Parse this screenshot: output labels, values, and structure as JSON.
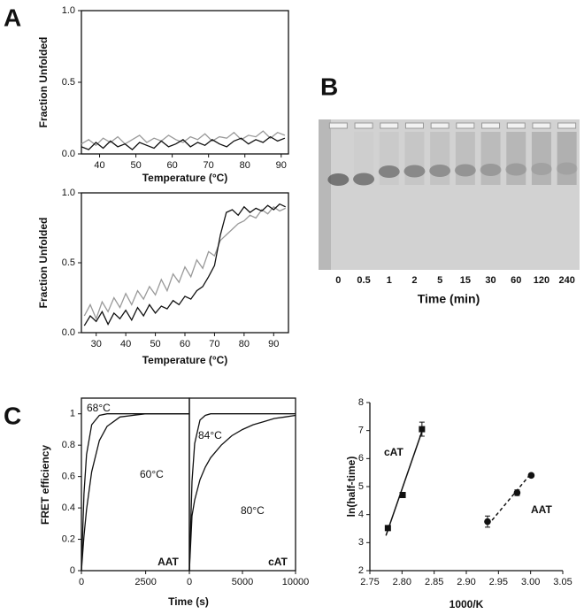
{
  "panels": [
    "A",
    "B",
    "C"
  ],
  "chart_data": [
    {
      "type": "line",
      "ylabel": "Fraction Unfolded",
      "xlabel": "Temperature (°C)",
      "box": true,
      "x": [
        35,
        37,
        39,
        41,
        43,
        45,
        47,
        49,
        51,
        53,
        55,
        57,
        59,
        61,
        63,
        65,
        67,
        69,
        71,
        73,
        75,
        77,
        79,
        81,
        83,
        85,
        87,
        89,
        91
      ],
      "series": [
        {
          "color": "#999999",
          "values": [
            0.07,
            0.1,
            0.06,
            0.11,
            0.08,
            0.12,
            0.07,
            0.1,
            0.13,
            0.08,
            0.11,
            0.09,
            0.13,
            0.1,
            0.08,
            0.12,
            0.1,
            0.14,
            0.09,
            0.12,
            0.11,
            0.15,
            0.1,
            0.13,
            0.12,
            0.16,
            0.11,
            0.15,
            0.13
          ]
        },
        {
          "color": "#111111",
          "values": [
            0.05,
            0.03,
            0.08,
            0.04,
            0.09,
            0.05,
            0.07,
            0.03,
            0.08,
            0.06,
            0.04,
            0.09,
            0.05,
            0.07,
            0.1,
            0.05,
            0.08,
            0.06,
            0.1,
            0.07,
            0.05,
            0.09,
            0.11,
            0.07,
            0.1,
            0.08,
            0.12,
            0.09,
            0.11
          ]
        }
      ],
      "xlim": [
        35,
        92
      ],
      "ylim": [
        0,
        1
      ],
      "xticks": [
        40,
        50,
        60,
        70,
        80,
        90
      ],
      "yticks": [
        {
          "value": 0,
          "label": "0.0"
        },
        {
          "value": 0.5,
          "label": "0.5"
        },
        {
          "value": 1,
          "label": "1.0"
        }
      ]
    },
    {
      "type": "line",
      "ylabel": "Fraction Unfolded",
      "xlabel": "Temperature (°C)",
      "box": true,
      "x": [
        26,
        28,
        30,
        32,
        34,
        36,
        38,
        40,
        42,
        44,
        46,
        48,
        50,
        52,
        54,
        56,
        58,
        60,
        62,
        64,
        66,
        68,
        70,
        72,
        74,
        76,
        78,
        80,
        82,
        84,
        86,
        88,
        90,
        92,
        94
      ],
      "series": [
        {
          "color": "#999999",
          "values": [
            0.12,
            0.2,
            0.1,
            0.22,
            0.15,
            0.25,
            0.18,
            0.28,
            0.2,
            0.3,
            0.24,
            0.33,
            0.27,
            0.38,
            0.3,
            0.42,
            0.36,
            0.47,
            0.4,
            0.52,
            0.46,
            0.58,
            0.55,
            0.66,
            0.7,
            0.74,
            0.78,
            0.8,
            0.84,
            0.82,
            0.88,
            0.85,
            0.9,
            0.87,
            0.89
          ]
        },
        {
          "color": "#111111",
          "values": [
            0.05,
            0.12,
            0.08,
            0.15,
            0.06,
            0.14,
            0.1,
            0.16,
            0.09,
            0.18,
            0.12,
            0.2,
            0.14,
            0.19,
            0.17,
            0.23,
            0.2,
            0.26,
            0.24,
            0.3,
            0.33,
            0.4,
            0.48,
            0.7,
            0.86,
            0.88,
            0.84,
            0.9,
            0.86,
            0.89,
            0.87,
            0.91,
            0.88,
            0.92,
            0.9
          ]
        }
      ],
      "xlim": [
        25,
        95
      ],
      "ylim": [
        0,
        1
      ],
      "xticks": [
        30,
        40,
        50,
        60,
        70,
        80,
        90
      ],
      "yticks": [
        {
          "value": 0,
          "label": "0.0"
        },
        {
          "value": 0.5,
          "label": "0.5"
        },
        {
          "value": 1,
          "label": "1.0"
        }
      ]
    },
    {
      "type": "gel",
      "categories": [
        "0",
        "0.5",
        "1",
        "2",
        "5",
        "15",
        "30",
        "60",
        "120",
        "240"
      ],
      "xlabel": "Time (min)"
    },
    {
      "type": "line",
      "ylabel": "FRET efficiency",
      "xlabel": "Time (s)",
      "label": "AAT",
      "box": true,
      "x": [
        0,
        100,
        200,
        400,
        700,
        1000,
        1500,
        2000,
        2500,
        3000,
        3500,
        4000,
        4200
      ],
      "series": [
        {
          "name": "68°C",
          "color": "#111111",
          "values": [
            0,
            0.49,
            0.74,
            0.93,
            0.99,
            1,
            1,
            1,
            1,
            1,
            1,
            1,
            1
          ]
        },
        {
          "name": "60°C",
          "color": "#111111",
          "values": [
            0,
            0.22,
            0.39,
            0.63,
            0.83,
            0.92,
            0.98,
            0.99,
            1,
            1,
            1,
            1,
            1
          ]
        }
      ],
      "xlim": [
        0,
        4200
      ],
      "ylim": [
        0,
        1.1
      ],
      "xticks": [
        0,
        2500
      ],
      "yticks": [
        0,
        0.2,
        0.4,
        0.6,
        0.8,
        1
      ]
    },
    {
      "type": "line",
      "label": "cAT",
      "box": true,
      "x": [
        0,
        250,
        500,
        1000,
        1500,
        2000,
        3000,
        4000,
        5000,
        6000,
        7000,
        8000,
        9000,
        10000
      ],
      "series": [
        {
          "name": "84°C",
          "color": "#111111",
          "values": [
            0,
            0.57,
            0.81,
            0.96,
            0.99,
            1,
            1,
            1,
            1,
            1,
            1,
            1,
            1,
            1
          ]
        },
        {
          "name": "80°C",
          "color": "#111111",
          "values": [
            0,
            0.35,
            0.45,
            0.58,
            0.66,
            0.72,
            0.8,
            0.86,
            0.9,
            0.93,
            0.95,
            0.97,
            0.98,
            0.99
          ]
        }
      ],
      "xlim": [
        0,
        10000
      ],
      "ylim": [
        0,
        1.1
      ],
      "xticks": [
        0,
        5000,
        10000
      ]
    },
    {
      "type": "scatter",
      "ylabel": "ln(half-time)",
      "xlabel": "1000/K",
      "box": false,
      "series": [
        {
          "name": "cAT",
          "marker": "square",
          "color": "#111111",
          "dashed": false,
          "x": [
            2.778,
            2.801,
            2.831
          ],
          "values": [
            3.52,
            4.7,
            7.05
          ],
          "errors": [
            null,
            null,
            0.25
          ],
          "fit_x": [
            2.775,
            2.833
          ],
          "fit_values": [
            3.25,
            7.1
          ]
        },
        {
          "name": "AAT",
          "marker": "circle",
          "color": "#111111",
          "dashed": true,
          "x": [
            2.933,
            2.979,
            3.001
          ],
          "values": [
            3.75,
            4.78,
            5.4
          ],
          "errors": [
            0.2,
            0.1,
            0.05
          ],
          "fit_x": [
            2.94,
            3.0
          ],
          "fit_values": [
            3.8,
            5.45
          ]
        }
      ],
      "xlim": [
        2.75,
        3.05
      ],
      "ylim": [
        2,
        8
      ],
      "xticks": [
        2.75,
        {
          "value": 2.8,
          "label": "2.80"
        },
        2.85,
        {
          "value": 2.9,
          "label": "2.90"
        },
        2.95,
        {
          "value": 3,
          "label": "3.00"
        },
        3.05
      ],
      "yticks": [
        2,
        3,
        4,
        5,
        6,
        7,
        8
      ]
    }
  ]
}
